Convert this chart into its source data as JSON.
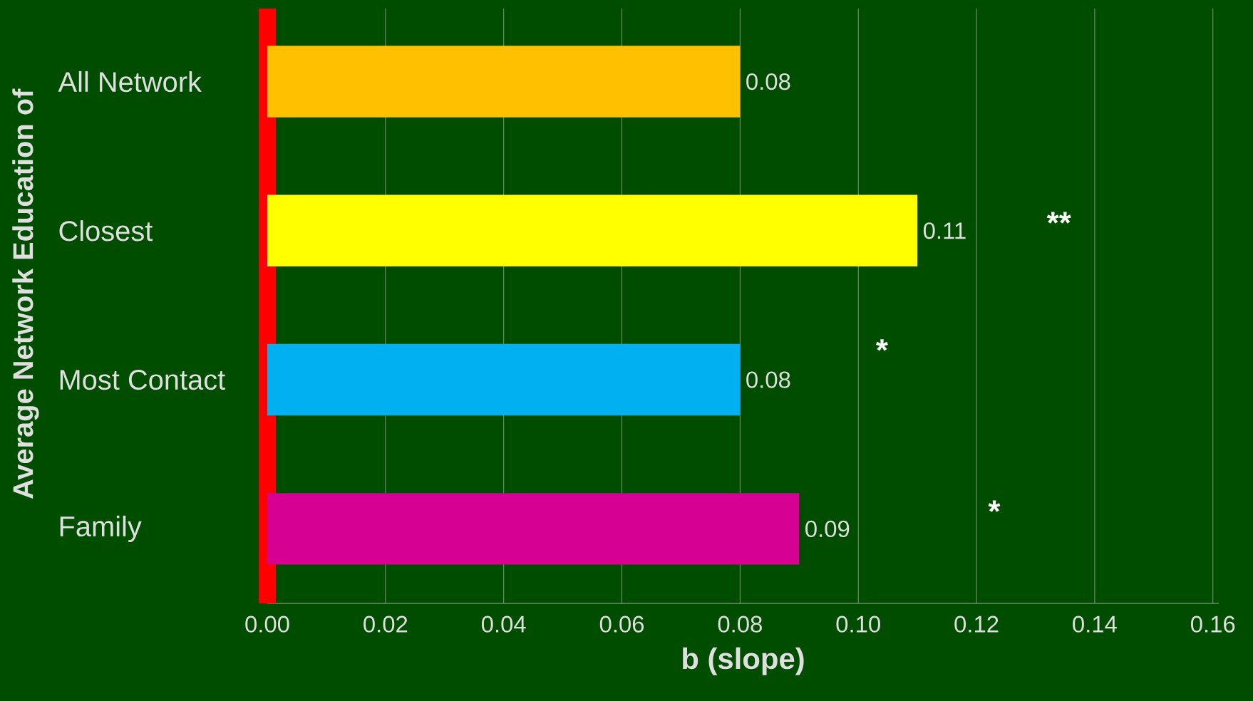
{
  "chart_data": {
    "type": "bar",
    "orientation": "horizontal",
    "categories": [
      "All Network",
      "Closest",
      "Most Contact",
      "Family"
    ],
    "values": [
      0.08,
      0.11,
      0.08,
      0.09
    ],
    "colors": [
      "#ffc000",
      "#ffff00",
      "#00b0f0",
      "#d60093"
    ],
    "xlabel": "b (slope)",
    "ylabel": "Average Network Education of",
    "xlim": [
      0,
      0.161
    ],
    "xticks": [
      {
        "value": 0,
        "label": "0.00"
      },
      {
        "value": 0.02,
        "label": "0.02"
      },
      {
        "value": 0.04,
        "label": "0.04"
      },
      {
        "value": 0.06,
        "label": "0.06"
      },
      {
        "value": 0.08,
        "label": "0.08"
      },
      {
        "value": 0.1,
        "label": "0.10"
      },
      {
        "value": 0.12,
        "label": "0.12"
      },
      {
        "value": 0.14,
        "label": "0.14"
      },
      {
        "value": 0.16,
        "label": "0.16"
      }
    ],
    "grid": "x",
    "data_labels": true,
    "annotations": [
      "**",
      "*",
      "*"
    ]
  }
}
